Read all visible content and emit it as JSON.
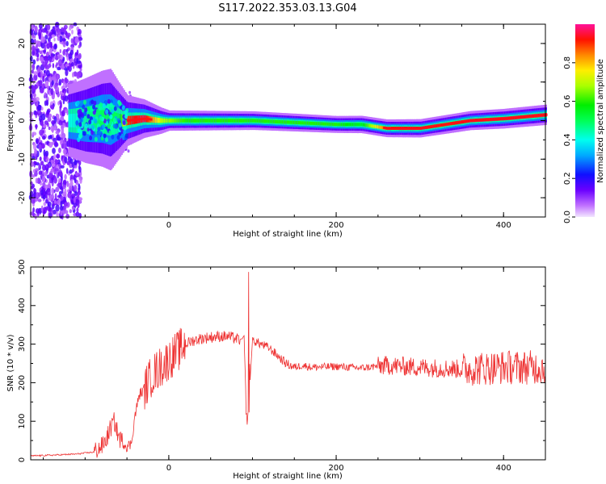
{
  "title": "S117.2022.353.03.13.G04",
  "colors": {
    "snr_line": "#ee3333",
    "ridge": "#ee2222",
    "scatter": "#7a1cff"
  },
  "chart_data": [
    {
      "type": "heatmap",
      "xlabel": "Height of straight line (km)",
      "ylabel": "Frequency (Hz)",
      "xlim": [
        -165,
        450
      ],
      "ylim": [
        -25,
        25
      ],
      "xticks": [
        0,
        200,
        400
      ],
      "yticks": [
        20,
        10,
        0,
        -10,
        -20
      ],
      "colorbar": {
        "label": "Normalized spectral amplitude",
        "range": [
          0,
          1
        ],
        "ticks": [
          "0.0",
          "0.2",
          "0.4",
          "0.6",
          "0.8"
        ],
        "tick_values": [
          0.0,
          0.2,
          0.4,
          0.6,
          0.8
        ],
        "colormap": "hsv-rainbow"
      },
      "ridge": {
        "x": [
          -165,
          -140,
          -120,
          -100,
          -80,
          -60,
          -50,
          -30,
          -10,
          20,
          60,
          100,
          150,
          200,
          230,
          260,
          300,
          330,
          360,
          400,
          450
        ],
        "frequency": [
          0,
          0,
          0,
          0,
          0.5,
          0,
          0,
          0.5,
          0,
          0,
          0,
          0,
          -0.5,
          -1,
          -1,
          -2,
          -2,
          -1,
          0,
          0.5,
          1.5
        ]
      },
      "ridge_amplitude": [
        0.35,
        0.35,
        0.4,
        0.45,
        0.5,
        0.5,
        0.9,
        0.95,
        0.7,
        0.6,
        0.6,
        0.6,
        0.6,
        0.6,
        0.55,
        0.9,
        0.95,
        0.9,
        0.95,
        0.95,
        0.95
      ]
    },
    {
      "type": "line",
      "xlabel": "Height of straight line (km)",
      "ylabel": "SNR (10 * v/v)",
      "xlim": [
        -165,
        450
      ],
      "ylim": [
        0,
        500
      ],
      "xticks": [
        0,
        200,
        400
      ],
      "yticks": [
        0,
        100,
        200,
        300,
        400,
        500
      ],
      "series": [
        {
          "x": [
            -165,
            -140,
            -110,
            -90,
            -80,
            -75,
            -70,
            -65,
            -60,
            -55,
            -50,
            -45,
            -40,
            -35,
            -30,
            -25,
            -20,
            -15,
            -10,
            -5,
            0,
            10,
            20,
            30,
            40,
            50,
            60,
            70,
            80,
            85,
            90,
            93,
            95,
            97,
            100,
            105,
            110,
            120,
            130,
            140,
            150,
            160,
            170,
            200,
            230,
            260,
            300,
            350,
            400,
            450
          ],
          "y": [
            10,
            12,
            15,
            20,
            35,
            50,
            80,
            100,
            60,
            45,
            35,
            40,
            120,
            170,
            180,
            200,
            220,
            230,
            240,
            250,
            260,
            280,
            300,
            310,
            315,
            318,
            320,
            320,
            315,
            310,
            320,
            100,
            450,
            200,
            310,
            305,
            300,
            290,
            270,
            250,
            240,
            245,
            240,
            242,
            238,
            245,
            240,
            235,
            240,
            240
          ]
        }
      ]
    }
  ]
}
